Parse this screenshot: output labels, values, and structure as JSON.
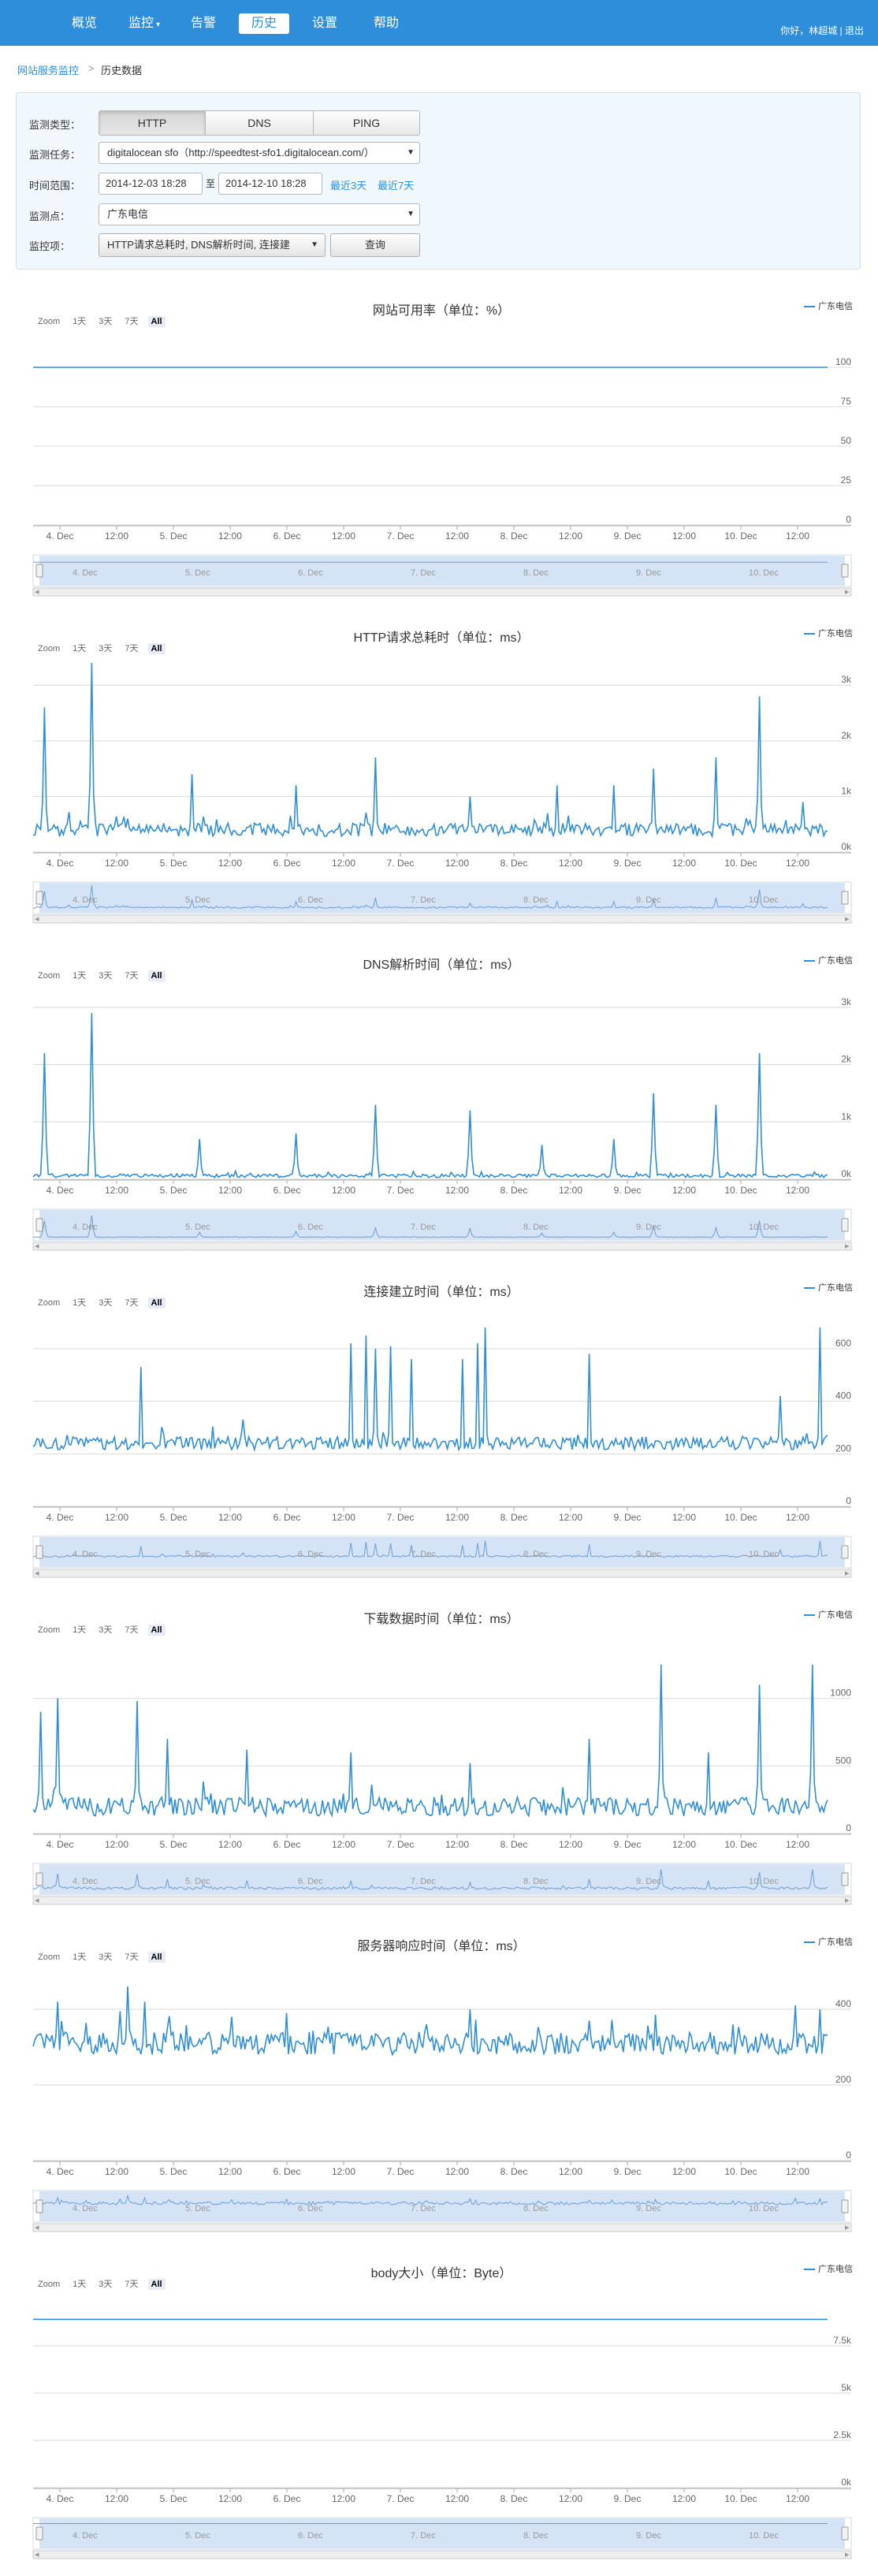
{
  "nav": {
    "items": [
      {
        "label": "概览"
      },
      {
        "label": "监控"
      },
      {
        "label": "告警"
      },
      {
        "label": "历史"
      },
      {
        "label": "设置"
      },
      {
        "label": "帮助"
      }
    ],
    "active": "历史",
    "user_text": "你好，林超城 | 退出"
  },
  "breadcrumb": {
    "root": "网站服务监控",
    "separator": ">",
    "current": "历史数据"
  },
  "filter": {
    "type_label": "监测类型：",
    "types": [
      "HTTP",
      "DNS",
      "PING"
    ],
    "active_type": "HTTP",
    "task_label": "监测任务：",
    "task_value": "digitalocean sfo（http://speedtest-sfo1.digitalocean.com/）",
    "range_label": "时间范围：",
    "range_start": "2014-12-03 18:28",
    "range_sep": "至",
    "range_end": "2014-12-10 18:28",
    "last3": "最近3天",
    "last7": "最近7天",
    "node_label": "监测点：",
    "node_value": "广东电信",
    "metric_label": "监控项：",
    "metric_value": "HTTP请求总耗时, DNS解析时间, 连接建",
    "query_button": "查询"
  },
  "zoom": {
    "label": "Zoom",
    "options": [
      "1天",
      "3天",
      "7天",
      "All"
    ],
    "active": "All"
  },
  "x_axis_labels": [
    "4. Dec",
    "12:00",
    "5. Dec",
    "12:00",
    "6. Dec",
    "12:00",
    "7. Dec",
    "12:00",
    "8. Dec",
    "12:00",
    "9. Dec",
    "12:00",
    "10. Dec",
    "12:00"
  ],
  "navigator_labels": [
    "4. Dec",
    "5. Dec",
    "6. Dec",
    "7. Dec",
    "8. Dec",
    "9. Dec",
    "10. Dec"
  ],
  "series_color": "#2e8ed9",
  "chart_data": [
    {
      "type": "line",
      "title": "网站可用率（单位：%）",
      "series": [
        {
          "name": "广东电信",
          "shape": "flat",
          "level": 100
        }
      ],
      "yticks": [
        "100",
        "75",
        "50",
        "25",
        "0"
      ],
      "ylim": [
        0,
        120
      ]
    },
    {
      "type": "line",
      "title": "HTTP请求总耗时（单位：ms）",
      "series": [
        {
          "name": "广东电信",
          "shape": "spiky",
          "baseline": 400,
          "noise": 120,
          "spikes": [
            [
              0.015,
              2600
            ],
            [
              0.073,
              3400
            ],
            [
              0.2,
              1400
            ],
            [
              0.33,
              1200
            ],
            [
              0.43,
              1700
            ],
            [
              0.55,
              1000
            ],
            [
              0.66,
              1200
            ],
            [
              0.73,
              1200
            ],
            [
              0.78,
              1500
            ],
            [
              0.86,
              1700
            ],
            [
              0.915,
              2800
            ],
            [
              0.97,
              900
            ]
          ]
        }
      ],
      "yticks": [
        "3k",
        "2k",
        "1k",
        "0k"
      ],
      "ylim": [
        0,
        3400
      ]
    },
    {
      "type": "line",
      "title": "DNS解析时间（单位：ms）",
      "series": [
        {
          "name": "广东电信",
          "shape": "spiky",
          "baseline": 60,
          "noise": 30,
          "spikes": [
            [
              0.015,
              2200
            ],
            [
              0.073,
              2900
            ],
            [
              0.21,
              700
            ],
            [
              0.33,
              800
            ],
            [
              0.43,
              1300
            ],
            [
              0.55,
              1200
            ],
            [
              0.64,
              600
            ],
            [
              0.73,
              700
            ],
            [
              0.78,
              1500
            ],
            [
              0.86,
              1300
            ],
            [
              0.915,
              2200
            ]
          ]
        }
      ],
      "yticks": [
        "3k",
        "2k",
        "1k",
        "0k"
      ],
      "ylim": [
        0,
        3300
      ]
    },
    {
      "type": "line",
      "title": "连接建立时间（单位：ms）",
      "series": [
        {
          "name": "广东电信",
          "shape": "spiky",
          "baseline": 240,
          "noise": 25,
          "spikes": [
            [
              0.135,
              530
            ],
            [
              0.265,
              330
            ],
            [
              0.4,
              620
            ],
            [
              0.42,
              650
            ],
            [
              0.43,
              600
            ],
            [
              0.45,
              610
            ],
            [
              0.475,
              560
            ],
            [
              0.54,
              560
            ],
            [
              0.56,
              620
            ],
            [
              0.57,
              680
            ],
            [
              0.7,
              580
            ],
            [
              0.94,
              420
            ],
            [
              0.99,
              680
            ]
          ]
        }
      ],
      "yticks": [
        "600",
        "400",
        "200",
        "0"
      ],
      "ylim": [
        0,
        720
      ]
    },
    {
      "type": "line",
      "title": "下载数据时间（单位：ms）",
      "series": [
        {
          "name": "广东电信",
          "shape": "spiky",
          "baseline": 200,
          "noise": 70,
          "spikes": [
            [
              0.01,
              900
            ],
            [
              0.03,
              1000
            ],
            [
              0.13,
              980
            ],
            [
              0.17,
              700
            ],
            [
              0.27,
              620
            ],
            [
              0.4,
              600
            ],
            [
              0.55,
              520
            ],
            [
              0.7,
              700
            ],
            [
              0.79,
              1250
            ],
            [
              0.85,
              600
            ],
            [
              0.915,
              1100
            ],
            [
              0.98,
              1250
            ]
          ]
        }
      ],
      "yticks": [
        "1000",
        "500",
        "0"
      ],
      "ylim": [
        0,
        1400
      ]
    },
    {
      "type": "line",
      "title": "服务器响应时间（单位：ms）",
      "series": [
        {
          "name": "广东电信",
          "shape": "spiky",
          "baseline": 310,
          "noise": 30,
          "spikes": [
            [
              0.03,
              420
            ],
            [
              0.12,
              460
            ],
            [
              0.14,
              420
            ],
            [
              0.25,
              380
            ],
            [
              0.32,
              390
            ],
            [
              0.55,
              400
            ],
            [
              0.7,
              370
            ],
            [
              0.88,
              360
            ],
            [
              0.96,
              410
            ],
            [
              0.99,
              400
            ]
          ]
        }
      ],
      "yticks": [
        "400",
        "200",
        "0"
      ],
      "ylim": [
        0,
        500
      ]
    },
    {
      "type": "line",
      "title": "body大小（单位：Byte）",
      "series": [
        {
          "name": "广东电信",
          "shape": "flat",
          "level": 8900
        }
      ],
      "yticks": [
        "7.5k",
        "5k",
        "2.5k",
        "0k"
      ],
      "ylim": [
        0,
        10000
      ]
    }
  ]
}
